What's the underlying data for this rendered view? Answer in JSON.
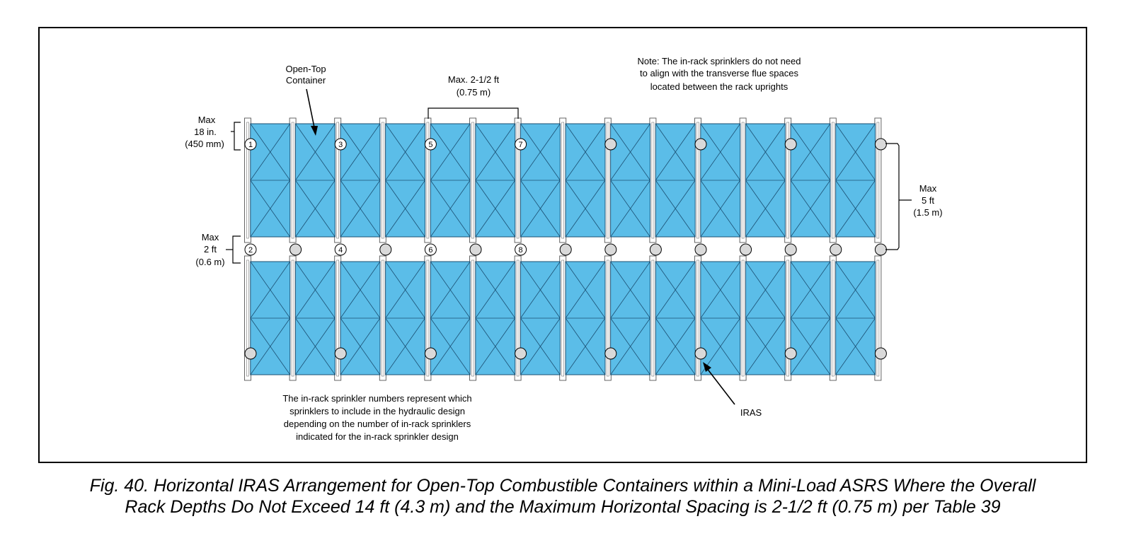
{
  "diagram": {
    "labels": {
      "open_top_container": [
        "Open-Top",
        "Container"
      ],
      "max_top_spacing": [
        "Max. 2-1/2 ft",
        "(0.75 m)"
      ],
      "note": [
        "Note: The in-rack sprinklers do not need",
        "to align with the transverse flue spaces",
        "located between the rack uprights"
      ],
      "max_18in": [
        "Max",
        "18 in.",
        "(450 mm)"
      ],
      "max_2ft": [
        "Max",
        "2 ft",
        "(0.6 m)"
      ],
      "max_5ft": [
        "Max",
        "5 ft",
        "(1.5 m)"
      ],
      "iras": "IRAS",
      "sprinkler_numbers_note": [
        "The in-rack sprinkler numbers represent which",
        "sprinklers to include in the hydraulic design",
        "depending on the number of in-rack sprinklers",
        "indicated for the in-rack sprinkler design"
      ]
    },
    "rack_bays_per_row": 14,
    "rack_rows": 2,
    "sprinklers": {
      "top_row": [
        "1",
        "",
        "3",
        "",
        "5",
        "",
        "7",
        "",
        "",
        "",
        "",
        "",
        "",
        ""
      ],
      "middle_row": [
        "2",
        "",
        "4",
        "",
        "6",
        "",
        "8",
        "",
        "",
        "",
        "",
        "",
        "",
        "",
        ""
      ],
      "bottom_row": [
        "",
        "",
        "",
        "",
        "",
        "",
        "",
        "",
        "",
        "",
        "",
        "",
        "",
        ""
      ]
    },
    "colors": {
      "container_fill": "#5bbde8",
      "container_stroke": "#1b4f72",
      "sprinkler_fill": "#d9d9d9",
      "line": "#000000"
    }
  },
  "caption": {
    "line1": "Fig. 40. Horizontal IRAS Arrangement for Open-Top Combustible Containers within a Mini-Load ASRS Where the Overall",
    "line2": "Rack Depths Do Not Exceed 14 ft (4.3 m) and the Maximum Horizontal Spacing is 2-1/2 ft (0.75 m) per Table 39"
  }
}
